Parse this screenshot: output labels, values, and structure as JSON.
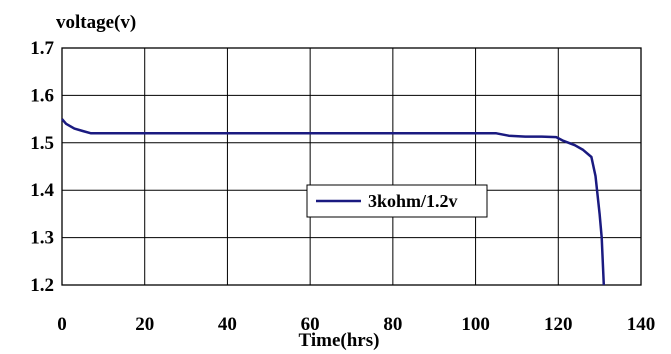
{
  "chart_data": {
    "type": "line",
    "ylabel": "voltage(v)",
    "xlabel": "Time(hrs)",
    "xlim": [
      0,
      140
    ],
    "ylim": [
      1.2,
      1.7
    ],
    "x_ticks": [
      0,
      20,
      40,
      60,
      80,
      100,
      120,
      140
    ],
    "x_tick_labels": [
      "0",
      "20",
      "40",
      "60",
      "80",
      "100",
      "120",
      "140"
    ],
    "y_ticks": [
      1.2,
      1.3,
      1.4,
      1.5,
      1.6,
      1.7
    ],
    "y_tick_labels": [
      "1.2",
      "1.3",
      "1.4",
      "1.5",
      "1.6",
      "1.7"
    ],
    "grid": true,
    "legend_position": "center",
    "series": [
      {
        "name": "3kohm/1.2v",
        "color": "#1a1a80",
        "points": [
          [
            0,
            1.55
          ],
          [
            1,
            1.54
          ],
          [
            3,
            1.53
          ],
          [
            5,
            1.525
          ],
          [
            7,
            1.52
          ],
          [
            10,
            1.52
          ],
          [
            20,
            1.52
          ],
          [
            40,
            1.52
          ],
          [
            60,
            1.52
          ],
          [
            80,
            1.52
          ],
          [
            100,
            1.52
          ],
          [
            105,
            1.52
          ],
          [
            108,
            1.515
          ],
          [
            112,
            1.513
          ],
          [
            116,
            1.513
          ],
          [
            119.5,
            1.512
          ],
          [
            121,
            1.505
          ],
          [
            124,
            1.495
          ],
          [
            126,
            1.485
          ],
          [
            128,
            1.47
          ],
          [
            129,
            1.43
          ],
          [
            130,
            1.35
          ],
          [
            130.5,
            1.3
          ],
          [
            131,
            1.2
          ]
        ]
      }
    ]
  }
}
